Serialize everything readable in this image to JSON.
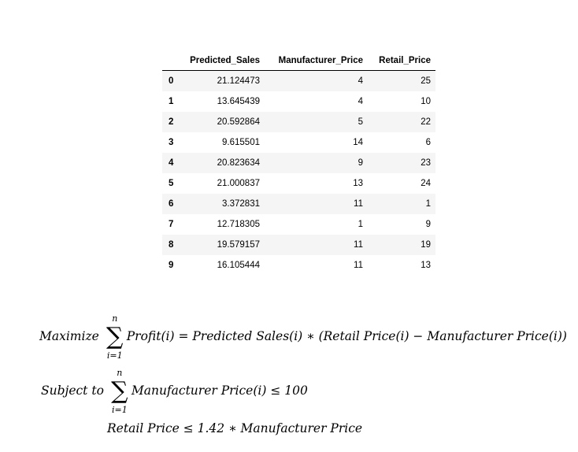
{
  "table": {
    "columns": [
      "Predicted_Sales",
      "Manufacturer_Price",
      "Retail_Price"
    ],
    "rows": [
      {
        "index": "0",
        "values": [
          "21.124473",
          "4",
          "25"
        ]
      },
      {
        "index": "1",
        "values": [
          "13.645439",
          "4",
          "10"
        ]
      },
      {
        "index": "2",
        "values": [
          "20.592864",
          "5",
          "22"
        ]
      },
      {
        "index": "3",
        "values": [
          "9.615501",
          "14",
          "6"
        ]
      },
      {
        "index": "4",
        "values": [
          "20.823634",
          "9",
          "23"
        ]
      },
      {
        "index": "5",
        "values": [
          "21.000837",
          "13",
          "24"
        ]
      },
      {
        "index": "6",
        "values": [
          "3.372831",
          "11",
          "1"
        ]
      },
      {
        "index": "7",
        "values": [
          "12.718305",
          "1",
          "9"
        ]
      },
      {
        "index": "8",
        "values": [
          "19.579157",
          "11",
          "19"
        ]
      },
      {
        "index": "9",
        "values": [
          "16.105444",
          "11",
          "13"
        ]
      }
    ]
  },
  "formulas": {
    "objective": {
      "label": "Maximize",
      "sum_upper": "n",
      "sum_lower": "i=1",
      "expression": "Profit(i) = Predicted Sales(i) ∗ (Retail Price(i) − Manufacturer Price(i))"
    },
    "constraint1": {
      "label": "Subject to",
      "sum_upper": "n",
      "sum_lower": "i=1",
      "expression": "Manufacturer Price(i) ≤ 100"
    },
    "constraint2": {
      "expression": "Retail Price ≤ 1.42 ∗ Manufacturer Price"
    }
  }
}
